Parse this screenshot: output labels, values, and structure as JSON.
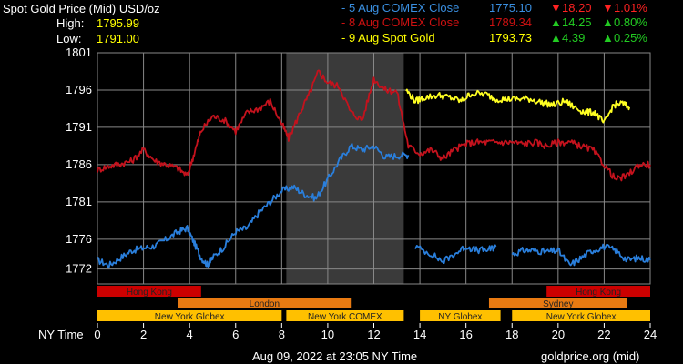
{
  "header": {
    "title": "Spot Gold Price (Mid) USD/oz",
    "high_label": "High:",
    "high_value": "1795.99",
    "low_label": "Low:",
    "low_value": "1791.00"
  },
  "legend": [
    {
      "label": "- 5 Aug COMEX Close",
      "price": "1775.10",
      "change": "18.20",
      "pct": "1.01%",
      "dir": "down",
      "color": "#3a8fe0"
    },
    {
      "label": "- 8 Aug COMEX Close",
      "price": "1789.34",
      "change": "14.25",
      "pct": "0.80%",
      "dir": "up",
      "color": "#cc1111"
    },
    {
      "label": "- 9 Aug Spot Gold",
      "price": "1793.73",
      "change": "4.39",
      "pct": "0.25%",
      "dir": "up",
      "color": "#ffff00"
    }
  ],
  "colors": {
    "background": "#000000",
    "grid": "#888888",
    "shade": "#3a3a3a",
    "up": "#22cc22",
    "down": "#ff2222",
    "blue_series": "#2a7fdc",
    "red_series": "#c4121d",
    "yellow_series": "#ffff22"
  },
  "footer": {
    "timestamp": "Aug 09, 2022 at 23:05 NY Time",
    "source": "goldprice.org (mid)",
    "ny_time_label": "NY Time"
  },
  "chart_data": {
    "type": "line",
    "xlim": [
      0,
      24
    ],
    "ylim": [
      1770,
      1801
    ],
    "x_ticks": [
      0,
      2,
      4,
      6,
      8,
      10,
      12,
      14,
      16,
      18,
      20,
      22,
      24
    ],
    "y_ticks": [
      1772,
      1776,
      1781,
      1786,
      1791,
      1796,
      1801
    ],
    "shaded_region": [
      8.2,
      13.3
    ],
    "series": [
      {
        "name": "5 Aug COMEX Close",
        "color": "#2a7fdc",
        "segments": [
          {
            "x": [
              0,
              0.5,
              1,
              1.5,
              2,
              2.5,
              3,
              3.5,
              3.9,
              4.2,
              4.5,
              4.8,
              5,
              5.5,
              6,
              6.5,
              7,
              7.5,
              8,
              8.5,
              9,
              9.5,
              10,
              10.5,
              11,
              11.5,
              12,
              12.5,
              13,
              13.5
            ],
            "y": [
              1773.2,
              1772.5,
              1773.5,
              1774.5,
              1774.8,
              1775.1,
              1776,
              1777,
              1777.5,
              1775.5,
              1773.5,
              1772.5,
              1773.5,
              1775,
              1777,
              1777.5,
              1779.5,
              1781,
              1782.5,
              1783,
              1782,
              1781.5,
              1784,
              1786.5,
              1788.5,
              1788,
              1788.5,
              1787,
              1787.2,
              1787.3
            ]
          },
          {
            "x": [
              13.8,
              14.5,
              15,
              15.5,
              16,
              16.5,
              17,
              17.3
            ],
            "y": [
              1775,
              1774,
              1773,
              1774,
              1775,
              1774.5,
              1774.6,
              1775
            ]
          },
          {
            "x": [
              18,
              18.5,
              19,
              19.5,
              20,
              20.5,
              21,
              21.5,
              22,
              22.5,
              23,
              23.5,
              24
            ],
            "y": [
              1774,
              1774.5,
              1774.5,
              1774.3,
              1774.5,
              1772.5,
              1773.5,
              1774.5,
              1775,
              1774.5,
              1773.2,
              1773.5,
              1773.2
            ]
          }
        ]
      },
      {
        "name": "8 Aug COMEX Close",
        "color": "#c4121d",
        "segments": [
          {
            "x": [
              0,
              0.5,
              1,
              1.5,
              2,
              2.5,
              3,
              3.5,
              3.9,
              4.2,
              4.5,
              5,
              5.5,
              6,
              6.5,
              7,
              7.5,
              8,
              8.3,
              8.8,
              9.2,
              9.6,
              10,
              10.5,
              11,
              11.5,
              12,
              12.5,
              13,
              13.5,
              14,
              14.5,
              15,
              15.5,
              16,
              16.5,
              17,
              17.5,
              18,
              18.5,
              19,
              19.5,
              20,
              20.5,
              21,
              21.5,
              22,
              22.5,
              23,
              23.5,
              24
            ],
            "y": [
              1785.3,
              1785.8,
              1786.1,
              1786.5,
              1788,
              1786.5,
              1786,
              1785.5,
              1784.5,
              1787.5,
              1790.5,
              1792.5,
              1792,
              1790.5,
              1793,
              1793.5,
              1794.5,
              1791.5,
              1789.5,
              1793,
              1795.5,
              1798.5,
              1797,
              1796.5,
              1793,
              1792,
              1797.5,
              1796,
              1795.8,
              1788.5,
              1787.5,
              1788,
              1786.8,
              1788,
              1788.8,
              1789,
              1789,
              1789,
              1789,
              1788.8,
              1789,
              1788.5,
              1789,
              1789,
              1788.5,
              1788,
              1786,
              1784,
              1784.5,
              1786,
              1786
            ]
          }
        ]
      },
      {
        "name": "9 Aug Spot Gold",
        "color": "#ffff22",
        "segments": [
          {
            "x": [
              13.4,
              13.8,
              14.2,
              14.8,
              15.3,
              15.8,
              16.2,
              16.8,
              17.3,
              17.8,
              18.3,
              18.8,
              19.3,
              19.8,
              20.3,
              20.8,
              21.2,
              21.6,
              22,
              22.4,
              22.8,
              23.1
            ],
            "y": [
              1796,
              1794.5,
              1795,
              1795.3,
              1795,
              1794.5,
              1795.5,
              1795.5,
              1794.8,
              1794.8,
              1794.8,
              1794.8,
              1794.3,
              1794,
              1794.5,
              1793.5,
              1793,
              1793,
              1791.5,
              1794,
              1794.2,
              1793.7
            ]
          }
        ]
      }
    ],
    "sessions": [
      {
        "row": 1,
        "name": "Hong Kong",
        "start": 0,
        "end": 4.5,
        "color": "#cc0000"
      },
      {
        "row": 1,
        "name": "Hong Kong",
        "start": 19.5,
        "end": 24,
        "color": "#cc0000"
      },
      {
        "row": 2,
        "name": "London",
        "start": 3.5,
        "end": 11,
        "color": "#e87a12"
      },
      {
        "row": 2,
        "name": "Sydney",
        "start": 17,
        "end": 23,
        "color": "#e87a12"
      },
      {
        "row": 3,
        "name": "New York Globex",
        "start": 0,
        "end": 8,
        "color": "#ffc000"
      },
      {
        "row": 3,
        "name": "New York COMEX",
        "start": 8.2,
        "end": 13.3,
        "color": "#ffc000"
      },
      {
        "row": 3,
        "name": "NY Globex",
        "start": 14,
        "end": 17.5,
        "color": "#ffc000"
      },
      {
        "row": 3,
        "name": "New York Globex",
        "start": 18,
        "end": 24,
        "color": "#ffc000"
      }
    ]
  }
}
